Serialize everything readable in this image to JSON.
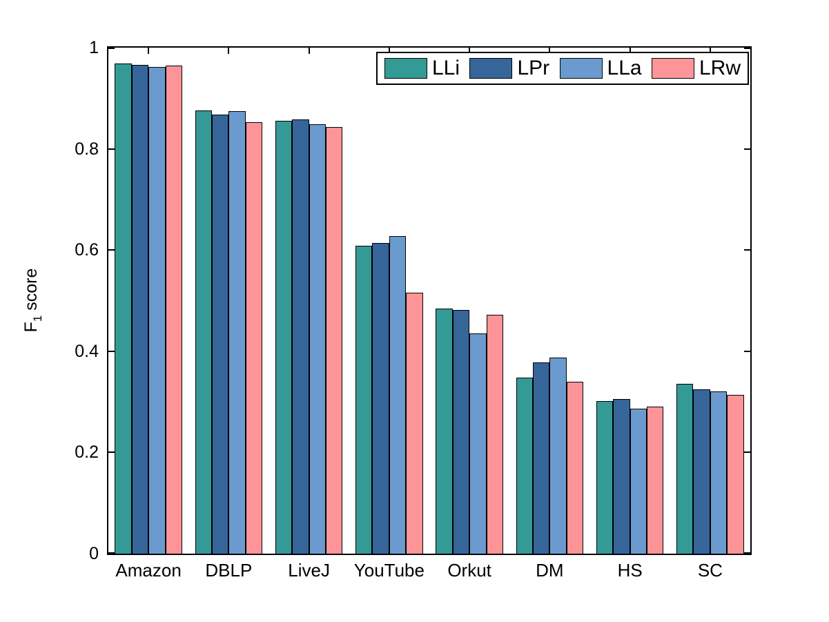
{
  "chart_data": {
    "type": "bar",
    "title": "",
    "ylabel": {
      "prefix": "F",
      "sub": "1",
      "suffix": " score"
    },
    "xlabel": "",
    "categories": [
      "Amazon",
      "DBLP",
      "LiveJ",
      "YouTube",
      "Orkut",
      "DM",
      "HS",
      "SC"
    ],
    "series": [
      {
        "name": "LLi",
        "color": "#349A96",
        "values": [
          0.968,
          0.876,
          0.855,
          0.608,
          0.484,
          0.348,
          0.301,
          0.335
        ]
      },
      {
        "name": "LPr",
        "color": "#36659A",
        "values": [
          0.966,
          0.868,
          0.858,
          0.614,
          0.481,
          0.378,
          0.305,
          0.325
        ]
      },
      {
        "name": "LLa",
        "color": "#6B9BCE",
        "values": [
          0.962,
          0.875,
          0.849,
          0.627,
          0.435,
          0.387,
          0.287,
          0.321
        ]
      },
      {
        "name": "LRw",
        "color": "#FD9598",
        "values": [
          0.964,
          0.853,
          0.843,
          0.516,
          0.472,
          0.34,
          0.29,
          0.314
        ]
      }
    ],
    "ylim": [
      0,
      1
    ],
    "yticks": [
      {
        "value": 0,
        "label": "0"
      },
      {
        "value": 0.2,
        "label": "0.2"
      },
      {
        "value": 0.4,
        "label": "0.4"
      },
      {
        "value": 0.6,
        "label": "0.6"
      },
      {
        "value": 0.8,
        "label": "0.8"
      },
      {
        "value": 1,
        "label": "1"
      }
    ],
    "legend_position": "top-right-inside",
    "grid": false,
    "bar_edge_color": "#000000",
    "axis_color": "#000000",
    "background_color": "#ffffff"
  }
}
